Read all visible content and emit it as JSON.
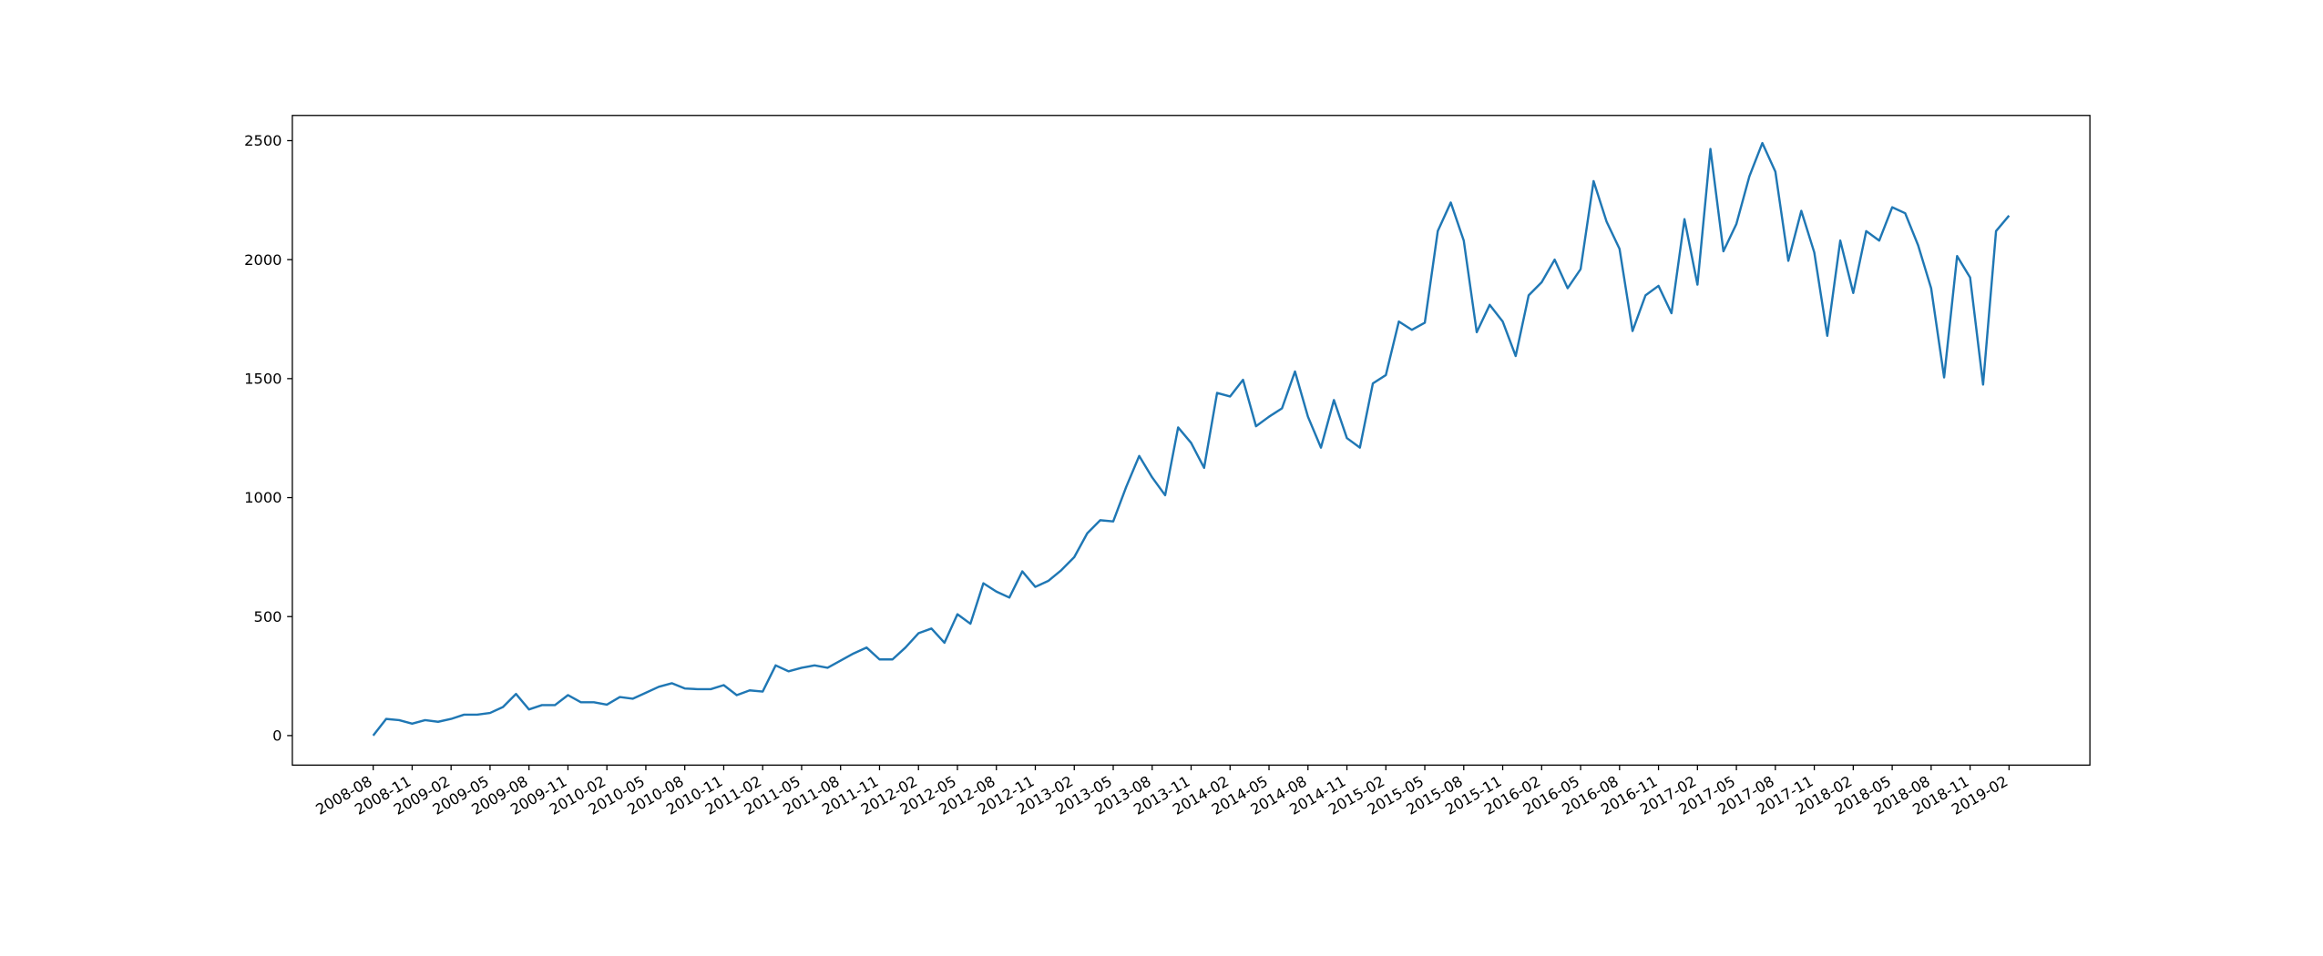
{
  "chart_data": {
    "type": "line",
    "x": [
      "2008-08",
      "2008-09",
      "2008-10",
      "2008-11",
      "2008-12",
      "2009-01",
      "2009-02",
      "2009-03",
      "2009-04",
      "2009-05",
      "2009-06",
      "2009-07",
      "2009-08",
      "2009-09",
      "2009-10",
      "2009-11",
      "2009-12",
      "2010-01",
      "2010-02",
      "2010-03",
      "2010-04",
      "2010-05",
      "2010-06",
      "2010-07",
      "2010-08",
      "2010-09",
      "2010-10",
      "2010-11",
      "2010-12",
      "2011-01",
      "2011-02",
      "2011-03",
      "2011-04",
      "2011-05",
      "2011-06",
      "2011-07",
      "2011-08",
      "2011-09",
      "2011-10",
      "2011-11",
      "2011-12",
      "2012-01",
      "2012-02",
      "2012-03",
      "2012-04",
      "2012-05",
      "2012-06",
      "2012-07",
      "2012-08",
      "2012-09",
      "2012-10",
      "2012-11",
      "2012-12",
      "2013-01",
      "2013-02",
      "2013-03",
      "2013-04",
      "2013-05",
      "2013-06",
      "2013-07",
      "2013-08",
      "2013-09",
      "2013-10",
      "2013-11",
      "2013-12",
      "2014-01",
      "2014-02",
      "2014-03",
      "2014-04",
      "2014-05",
      "2014-06",
      "2014-07",
      "2014-08",
      "2014-09",
      "2014-10",
      "2014-11",
      "2014-12",
      "2015-01",
      "2015-02",
      "2015-03",
      "2015-04",
      "2015-05",
      "2015-06",
      "2015-07",
      "2015-08",
      "2015-09",
      "2015-10",
      "2015-11",
      "2015-12",
      "2016-01",
      "2016-02",
      "2016-03",
      "2016-04",
      "2016-05",
      "2016-06",
      "2016-07",
      "2016-08",
      "2016-09",
      "2016-10",
      "2016-11",
      "2016-12",
      "2017-01",
      "2017-02",
      "2017-03",
      "2017-04",
      "2017-05",
      "2017-06",
      "2017-07",
      "2017-08",
      "2017-09",
      "2017-10",
      "2017-11",
      "2017-12",
      "2018-01",
      "2018-02",
      "2018-03",
      "2018-04",
      "2018-05",
      "2018-06",
      "2018-07",
      "2018-08",
      "2018-09",
      "2018-10",
      "2018-11",
      "2018-12",
      "2019-01",
      "2019-02"
    ],
    "series": [
      {
        "color": "#1f77b4",
        "values": [
          0,
          70,
          65,
          50,
          65,
          58,
          70,
          88,
          88,
          95,
          120,
          175,
          110,
          128,
          128,
          170,
          140,
          140,
          130,
          162,
          155,
          180,
          205,
          220,
          198,
          195,
          195,
          212,
          170,
          190,
          185,
          295,
          270,
          285,
          295,
          285,
          315,
          345,
          370,
          320,
          320,
          370,
          430,
          450,
          390,
          510,
          470,
          640,
          605,
          580,
          690,
          625,
          650,
          695,
          750,
          850,
          905,
          900,
          1045,
          1175,
          1085,
          1010,
          1295,
          1230,
          1125,
          1440,
          1425,
          1495,
          1300,
          1340,
          1375,
          1530,
          1340,
          1210,
          1410,
          1250,
          1210,
          1480,
          1515,
          1740,
          1705,
          1735,
          2120,
          2240,
          2080,
          1695,
          1810,
          1740,
          1595,
          1850,
          1905,
          2000,
          1880,
          1960,
          2330,
          2160,
          2045,
          1700,
          1850,
          1890,
          1775,
          2170,
          1895,
          2465,
          2035,
          2150,
          2350,
          2490,
          2370,
          1995,
          2205,
          2030,
          1680,
          2080,
          1860,
          2120,
          2080,
          2220,
          2195,
          2060,
          1880,
          1505,
          2015,
          1925,
          1475,
          2120,
          2185
        ]
      }
    ],
    "xlim": [
      "2008-02",
      "2019-08"
    ],
    "xticks": [
      "2008-08",
      "2008-11",
      "2009-02",
      "2009-05",
      "2009-08",
      "2009-11",
      "2010-02",
      "2010-05",
      "2010-08",
      "2010-11",
      "2011-02",
      "2011-05",
      "2011-08",
      "2011-11",
      "2012-02",
      "2012-05",
      "2012-08",
      "2012-11",
      "2013-02",
      "2013-05",
      "2013-08",
      "2013-11",
      "2014-02",
      "2014-05",
      "2014-08",
      "2014-11",
      "2015-02",
      "2015-05",
      "2015-08",
      "2015-11",
      "2016-02",
      "2016-05",
      "2016-08",
      "2016-11",
      "2017-02",
      "2017-05",
      "2017-08",
      "2017-11",
      "2018-02",
      "2018-05",
      "2018-08",
      "2018-11",
      "2019-02"
    ],
    "ylim": [
      -124,
      2606
    ],
    "yticks": [
      0,
      500,
      1000,
      1500,
      2000,
      2500
    ]
  }
}
